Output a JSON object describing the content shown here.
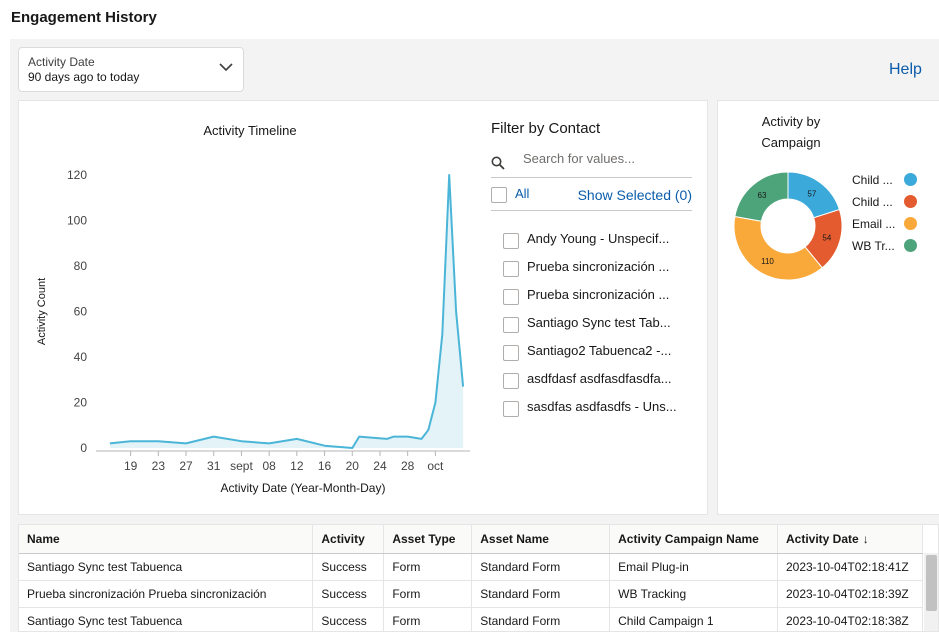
{
  "page": {
    "title": "Engagement History"
  },
  "date_filter": {
    "label": "Activity Date",
    "value": "90 days ago to today",
    "icon": "chevron-down-icon"
  },
  "help_label": "Help",
  "timeline": {
    "title": "Activity Timeline",
    "ylabel": "Activity Count",
    "xlabel": "Activity Date (Year-Month-Day)"
  },
  "contact_filter": {
    "title": "Filter by Contact",
    "search_placeholder": "Search for values...",
    "all_label": "All",
    "show_selected_label": "Show Selected (0)",
    "contacts": [
      "Andy Young - Unspecif...",
      "Prueba sincronización ...",
      "Prueba sincronización ...",
      "Santiago Sync test Tab...",
      "Santiago2 Tabuenca2 -...",
      "asdfdasf asdfasdfasdfa...",
      "sasdfas asdfasdfs - Uns..."
    ]
  },
  "campaign": {
    "title_line1": "Activity by",
    "title_line2": "Campaign"
  },
  "chart_data": [
    {
      "type": "area",
      "title": "Activity Timeline",
      "xlabel": "Activity Date (Year-Month-Day)",
      "ylabel": "Activity Count",
      "ylim": [
        0,
        120
      ],
      "yticks": [
        0,
        20,
        40,
        60,
        80,
        100,
        120
      ],
      "xticks": [
        "19",
        "23",
        "27",
        "31",
        "sept",
        "08",
        "12",
        "16",
        "20",
        "24",
        "28",
        "oct"
      ],
      "x": [
        16,
        19,
        23,
        27,
        31,
        35,
        39,
        43,
        47,
        51,
        52,
        56,
        57,
        59,
        61,
        62,
        63,
        64,
        65,
        66,
        67
      ],
      "values": [
        2,
        3,
        3,
        2,
        5,
        3,
        2,
        4,
        1,
        0,
        5,
        4,
        5,
        5,
        4,
        8,
        20,
        50,
        120,
        60,
        27
      ],
      "color": "#4bb5d8",
      "grid": false
    },
    {
      "type": "pie",
      "title": "Activity by Campaign",
      "labels": [
        "Child ...",
        "Child ...",
        "Email ...",
        "WB Tr..."
      ],
      "values": [
        57,
        54,
        110,
        63
      ],
      "colors": [
        "#3ba9da",
        "#e35b2f",
        "#f9a83a",
        "#4ea47a"
      ],
      "legend": "right"
    }
  ],
  "table": {
    "columns": [
      "Name",
      "Activity",
      "Asset Type",
      "Asset Name",
      "Activity Campaign Name",
      "Activity Date"
    ],
    "sort_indicator": "↓",
    "rows": [
      [
        "Santiago Sync test Tabuenca",
        "Success",
        "Form",
        "Standard Form",
        "Email Plug-in",
        "2023-10-04T02:18:41Z"
      ],
      [
        "Prueba sincronización Prueba sincronización",
        "Success",
        "Form",
        "Standard Form",
        "WB Tracking",
        "2023-10-04T02:18:39Z"
      ],
      [
        "Santiago Sync test Tabuenca",
        "Success",
        "Form",
        "Standard Form",
        "Child Campaign 1",
        "2023-10-04T02:18:38Z"
      ]
    ]
  }
}
